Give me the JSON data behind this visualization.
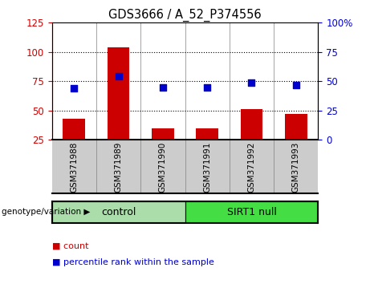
{
  "title": "GDS3666 / A_52_P374556",
  "categories": [
    "GSM371988",
    "GSM371989",
    "GSM371990",
    "GSM371991",
    "GSM371992",
    "GSM371993"
  ],
  "count_values": [
    43,
    104,
    35,
    35,
    51,
    47
  ],
  "percentile_values": [
    44,
    54,
    45,
    45,
    49,
    47
  ],
  "left_ylim": [
    25,
    125
  ],
  "left_yticks": [
    25,
    50,
    75,
    100,
    125
  ],
  "right_ylim": [
    0,
    100
  ],
  "right_yticks": [
    0,
    25,
    50,
    75,
    100
  ],
  "bar_color": "#cc0000",
  "dot_color": "#0000cc",
  "bar_width": 0.5,
  "groups": [
    {
      "label": "control",
      "indices": [
        0,
        1,
        2
      ],
      "color": "#aaddaa"
    },
    {
      "label": "SIRT1 null",
      "indices": [
        3,
        4,
        5
      ],
      "color": "#44dd44"
    }
  ],
  "genotype_label": "genotype/variation",
  "legend_count_label": "count",
  "legend_percentile_label": "percentile rank within the sample",
  "dot_size": 40,
  "background_color": "#ffffff",
  "plot_bg_color": "#ffffff",
  "xticklabel_area_color": "#cccccc"
}
